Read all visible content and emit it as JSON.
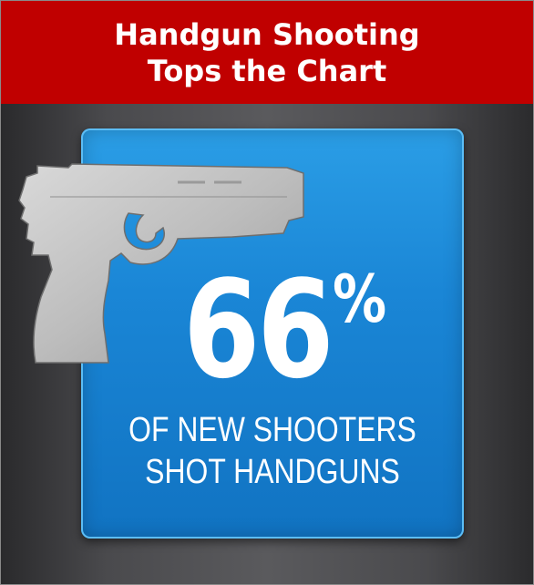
{
  "header": {
    "title_line1": "Handgun Shooting",
    "title_line2": "Tops the Chart"
  },
  "stat": {
    "number": "66",
    "symbol": "%",
    "caption_line1": "OF NEW SHOOTERS",
    "caption_line2": "SHOT HANDGUNS"
  },
  "icons": [
    "handgun-icon"
  ],
  "colors": {
    "header_background": "#c00000",
    "panel_blue": "#1a86d6",
    "text": "#ffffff"
  }
}
